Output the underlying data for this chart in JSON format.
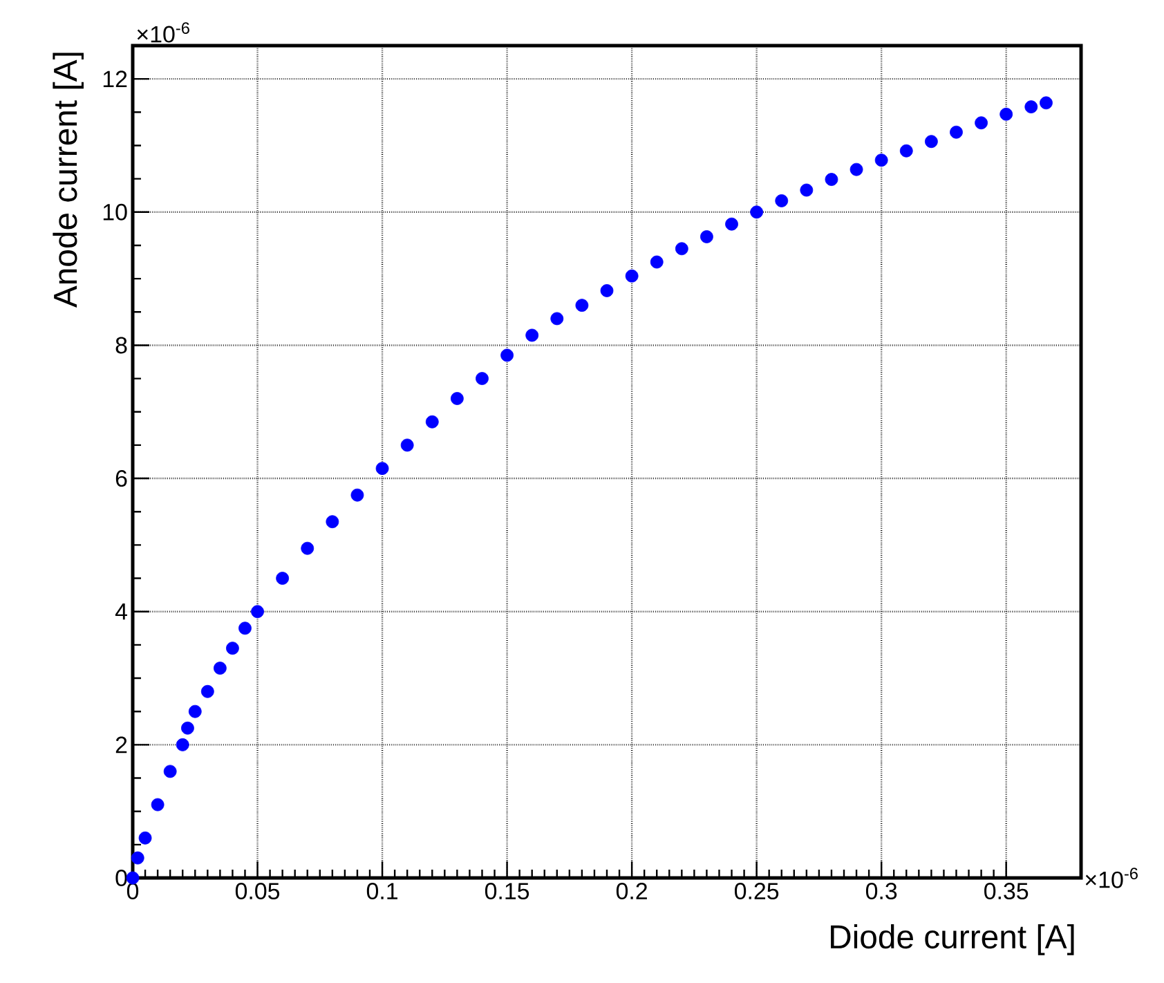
{
  "chart_data": {
    "type": "scatter",
    "xlabel": "Diode current  [A]",
    "ylabel": "Anode current  [A]",
    "annotations": [
      "×10$^{-6}$",
      "×10$^{-6}$"
    ],
    "x": [
      0,
      0.002,
      0.005,
      0.01,
      0.015,
      0.02,
      0.022,
      0.025,
      0.03,
      0.035,
      0.04,
      0.045,
      0.05,
      0.06,
      0.07,
      0.08,
      0.09,
      0.1,
      0.11,
      0.12,
      0.13,
      0.14,
      0.15,
      0.16,
      0.17,
      0.18,
      0.19,
      0.2,
      0.21,
      0.22,
      0.23,
      0.24,
      0.25,
      0.26,
      0.27,
      0.28,
      0.29,
      0.3,
      0.31,
      0.32,
      0.33,
      0.34,
      0.35,
      0.36,
      0.366
    ],
    "series": [
      {
        "color": "#0000ff",
        "values": [
          0,
          0.3,
          0.6,
          1.1,
          1.6,
          2.0,
          2.25,
          2.5,
          2.8,
          3.15,
          3.45,
          3.75,
          4.0,
          4.5,
          4.95,
          5.35,
          5.75,
          6.15,
          6.5,
          6.85,
          7.2,
          7.5,
          7.85,
          8.15,
          8.4,
          8.6,
          8.82,
          9.04,
          9.25,
          9.45,
          9.63,
          9.82,
          10.0,
          10.17,
          10.33,
          10.49,
          10.64,
          10.78,
          10.92,
          11.06,
          11.2,
          11.34,
          11.47,
          11.58,
          11.64
        ]
      }
    ],
    "xlim": [
      0,
      0.38
    ],
    "ylim": [
      0,
      12.5
    ],
    "xticks": [
      0,
      0.05,
      0.1,
      0.15,
      0.2,
      0.25,
      0.3,
      0.35
    ],
    "yticks": [
      0,
      2,
      4,
      6,
      8,
      10,
      12
    ],
    "grid": true,
    "marker": "circle"
  }
}
